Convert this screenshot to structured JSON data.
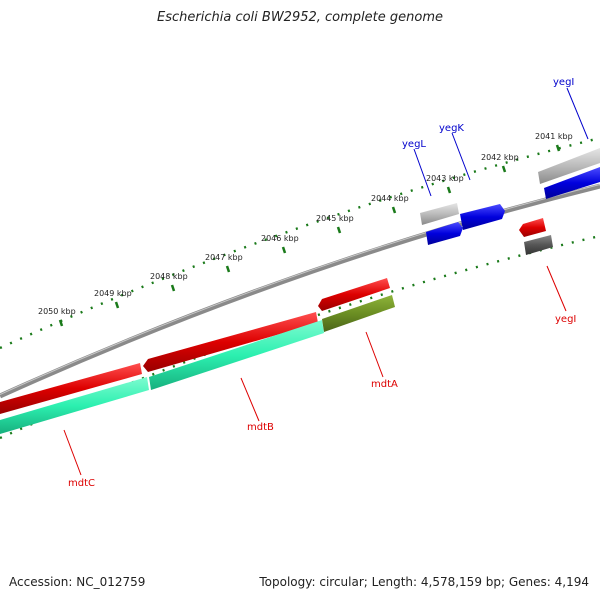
{
  "title": "Escherichia coli BW2952, complete genome",
  "accession": "Accession: NC_012759",
  "summary": "Topology: circular; Length: 4,578,159 bp; Genes: 4,194",
  "ticks": [
    "2041 kbp",
    "2042 kbp",
    "2043 kbp",
    "2044 kbp",
    "2045 kbp",
    "2046 kbp",
    "2047 kbp",
    "2048 kbp",
    "2049 kbp",
    "2050 kbp"
  ],
  "genes": [
    {
      "name": "yegI",
      "strand": "forward",
      "color": "#0000cc",
      "label_color": "#0000cc"
    },
    {
      "name": "yegK",
      "strand": "forward",
      "color": "#0000cc",
      "label_color": "#0000cc"
    },
    {
      "name": "yegL",
      "strand": "forward",
      "color": "#0000cc",
      "label_color": "#0000cc"
    },
    {
      "name": "yegI",
      "strand": "reverse",
      "color": "#dd0000",
      "label_color": "#dd0000"
    },
    {
      "name": "mdtA",
      "strand": "reverse",
      "color": "#dd0000",
      "label_color": "#dd0000"
    },
    {
      "name": "mdtB",
      "strand": "reverse",
      "color": "#dd0000",
      "label_color": "#dd0000"
    },
    {
      "name": "mdtC",
      "strand": "reverse",
      "color": "#dd0000",
      "label_color": "#dd0000"
    }
  ],
  "colors": {
    "backbone": "#777777",
    "cds_forward": "#0000dd",
    "cds_reverse": "#dd0000",
    "feature_grey": "#bbbbbb",
    "feature_dark": "#555555",
    "feature_cyan": "#2cf0b0",
    "feature_olive": "#6b8e23",
    "tick_green": "#1a7a1a"
  }
}
